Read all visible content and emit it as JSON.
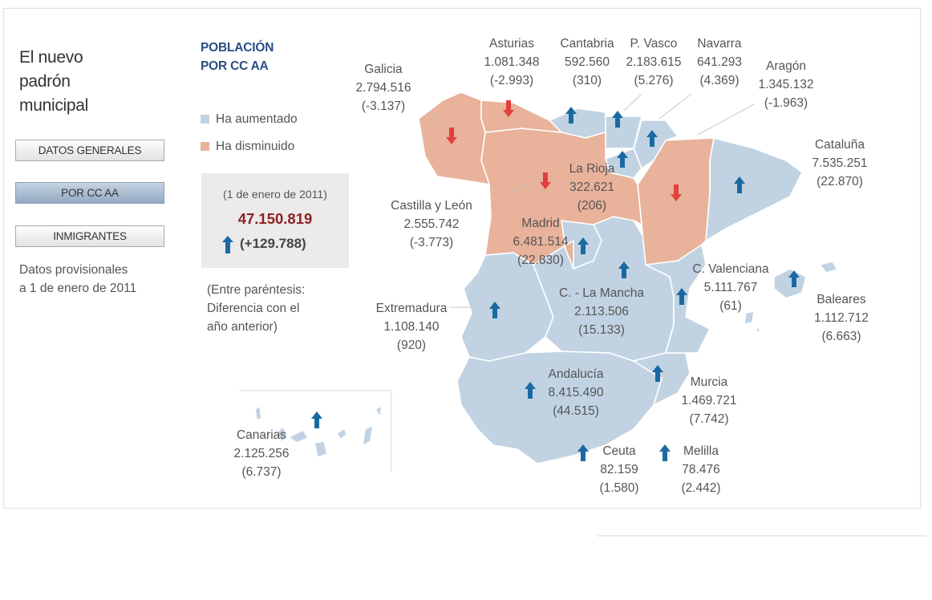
{
  "sidebar": {
    "title": "El nuevo\npadrón\nmunicipal",
    "buttons": [
      {
        "label": "DATOS GENERALES",
        "active": false
      },
      {
        "label": "POR CC AA",
        "active": true
      },
      {
        "label": "INMIGRANTES",
        "active": false
      }
    ],
    "note": "Datos provisionales\na 1 de enero de 2011"
  },
  "panel": {
    "title": "POBLACIÓN\nPOR CC AA",
    "legend": [
      {
        "label": "Ha aumentado",
        "color": "#c1d3e3"
      },
      {
        "label": "Ha disminuido",
        "color": "#e8b29b"
      }
    ],
    "summary": {
      "date": "(1 de enero de 2011)",
      "total": "47.150.819",
      "diff": "(+129.788)",
      "trend": "up"
    },
    "note": "(Entre paréntesis:\nDiferencia con el\naño anterior)"
  },
  "colors": {
    "increase": "#c1d3e3",
    "decrease": "#e8b29b",
    "arrow_up": "#1a6aa1",
    "arrow_down": "#e0413c",
    "total": "#8b2222"
  },
  "regions": [
    {
      "id": "galicia",
      "name": "Galicia",
      "population": "2.794.516",
      "diff": "(-3.137)",
      "trend": "down"
    },
    {
      "id": "asturias",
      "name": "Asturias",
      "population": "1.081.348",
      "diff": "(-2.993)",
      "trend": "down"
    },
    {
      "id": "cantabria",
      "name": "Cantabria",
      "population": "592.560",
      "diff": "(310)",
      "trend": "up"
    },
    {
      "id": "pvasco",
      "name": "P. Vasco",
      "population": "2.183.615",
      "diff": "(5.276)",
      "trend": "up"
    },
    {
      "id": "navarra",
      "name": "Navarra",
      "population": "641.293",
      "diff": "(4.369)",
      "trend": "up"
    },
    {
      "id": "aragon",
      "name": "Aragón",
      "population": "1.345.132",
      "diff": "(-1.963)",
      "trend": "down"
    },
    {
      "id": "cataluna",
      "name": "Cataluña",
      "population": "7.535.251",
      "diff": "(22.870)",
      "trend": "up"
    },
    {
      "id": "larioja",
      "name": "La Rioja",
      "population": "322.621",
      "diff": "(206)",
      "trend": "up"
    },
    {
      "id": "castillaleon",
      "name": "Castilla y León",
      "population": "2.555.742",
      "diff": "(-3.773)",
      "trend": "down"
    },
    {
      "id": "madrid",
      "name": "Madrid",
      "population": "6.481.514",
      "diff": "(22.830)",
      "trend": "up"
    },
    {
      "id": "valenciana",
      "name": "C. Valenciana",
      "population": "5.111.767",
      "diff": "(61)",
      "trend": "up"
    },
    {
      "id": "baleares",
      "name": "Baleares",
      "population": "1.112.712",
      "diff": "(6.663)",
      "trend": "up"
    },
    {
      "id": "extremadura",
      "name": "Extremadura",
      "population": "1.108.140",
      "diff": "(920)",
      "trend": "up"
    },
    {
      "id": "clamancha",
      "name": "C. - La Mancha",
      "population": "2.113.506",
      "diff": "(15.133)",
      "trend": "up"
    },
    {
      "id": "andalucia",
      "name": "Andalucía",
      "population": "8.415.490",
      "diff": "(44.515)",
      "trend": "up"
    },
    {
      "id": "murcia",
      "name": "Murcia",
      "population": "1.469.721",
      "diff": "(7.742)",
      "trend": "up"
    },
    {
      "id": "canarias",
      "name": "Canarias",
      "population": "2.125.256",
      "diff": "(6.737)",
      "trend": "up"
    },
    {
      "id": "ceuta",
      "name": "Ceuta",
      "population": "82.159",
      "diff": "(1.580)",
      "trend": "up"
    },
    {
      "id": "melilla",
      "name": "Melilla",
      "population": "78.476",
      "diff": "(2.442)",
      "trend": "up"
    }
  ]
}
